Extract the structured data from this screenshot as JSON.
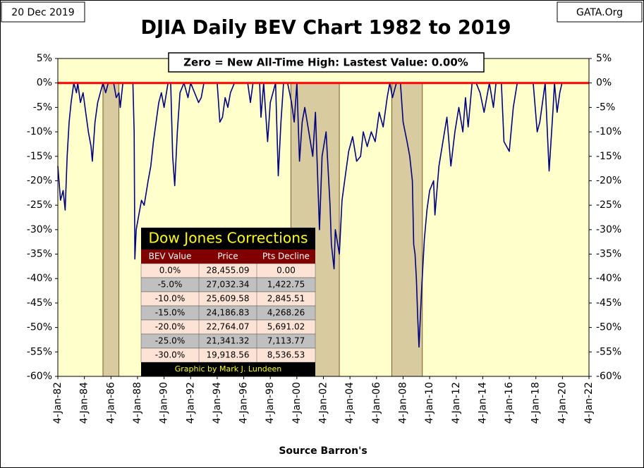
{
  "chart_data": {
    "type": "line",
    "title": "DJIA Daily BEV Chart 1982 to 2019",
    "date_label": "20 Dec 2019",
    "source_mark": "GATA.Org",
    "xlabel": "Source Barron's",
    "annotation": "Zero = New All-Time High: Lastest Value:  0.00%",
    "color": "#000080",
    "hline": {
      "value": 0,
      "color": "#ff0000"
    },
    "shaded_ranges": [
      [
        1985.4,
        1986.6
      ],
      [
        1999.55,
        2003.2
      ],
      [
        2007.15,
        2009.45
      ]
    ],
    "x": [
      1982.0,
      1982.2,
      1982.4,
      1982.55,
      1982.7,
      1982.85,
      1983.0,
      1983.2,
      1983.4,
      1983.5,
      1983.7,
      1983.9,
      1984.1,
      1984.3,
      1984.5,
      1984.6,
      1984.8,
      1985.0,
      1985.2,
      1985.4,
      1985.6,
      1985.8,
      1986.0,
      1986.2,
      1986.4,
      1986.6,
      1986.7,
      1986.9,
      1987.2,
      1987.5,
      1987.65,
      1987.75,
      1987.8,
      1987.9,
      1988.1,
      1988.3,
      1988.5,
      1988.8,
      1989.0,
      1989.2,
      1989.4,
      1989.6,
      1989.8,
      1990.0,
      1990.3,
      1990.5,
      1990.65,
      1990.8,
      1991.0,
      1991.2,
      1991.5,
      1991.8,
      1992.0,
      1992.3,
      1992.6,
      1992.8,
      1993.0,
      1993.5,
      1994.0,
      1994.2,
      1994.4,
      1994.6,
      1994.8,
      1995.0,
      1995.3,
      1995.8,
      1996.3,
      1996.5,
      1996.7,
      1997.2,
      1997.3,
      1997.5,
      1997.8,
      1998.0,
      1998.4,
      1998.6,
      1998.8,
      1999.0,
      1999.3,
      1999.6,
      1999.8,
      2000.0,
      2000.2,
      2000.4,
      2000.6,
      2000.9,
      2001.2,
      2001.4,
      2001.7,
      2001.9,
      2002.2,
      2002.5,
      2002.6,
      2002.8,
      2002.9,
      2003.2,
      2003.4,
      2003.6,
      2003.9,
      2004.2,
      2004.5,
      2004.8,
      2005.0,
      2005.3,
      2005.6,
      2005.9,
      2006.2,
      2006.5,
      2006.8,
      2007.0,
      2007.2,
      2007.5,
      2007.8,
      2008.0,
      2008.3,
      2008.5,
      2008.7,
      2008.8,
      2008.9,
      2009.0,
      2009.1,
      2009.2,
      2009.4,
      2009.6,
      2009.8,
      2010.0,
      2010.3,
      2010.4,
      2010.7,
      2011.0,
      2011.3,
      2011.6,
      2011.9,
      2012.2,
      2012.5,
      2012.7,
      2012.9,
      2013.2,
      2013.5,
      2013.8,
      2014.1,
      2014.5,
      2014.8,
      2015.0,
      2015.4,
      2015.6,
      2016.0,
      2016.3,
      2016.6,
      2016.9,
      2017.3,
      2017.8,
      2018.1,
      2018.3,
      2018.7,
      2018.9,
      2019.0,
      2019.3,
      2019.4,
      2019.6,
      2019.8,
      2019.97
    ],
    "values": [
      -17,
      -24,
      -22,
      -26,
      -15,
      -8,
      -4,
      0,
      -2,
      0,
      -4,
      -2,
      -6,
      -10,
      -13,
      -16,
      -8,
      -4,
      -2,
      0,
      -2,
      0,
      0,
      0,
      -3,
      -2,
      -5,
      0,
      0,
      0,
      0,
      -10,
      -36,
      -30,
      -27,
      -24,
      -25,
      -20,
      -17,
      -12,
      -8,
      -4,
      -2,
      -5,
      0,
      0,
      -15,
      -21,
      -10,
      -2,
      0,
      -3,
      0,
      -2,
      -4,
      -3,
      0,
      0,
      0,
      -8,
      -7,
      -3,
      -5,
      -2,
      0,
      0,
      0,
      -4,
      0,
      0,
      -7,
      0,
      -12,
      -4,
      0,
      -19,
      -8,
      0,
      0,
      -4,
      -8,
      0,
      -16,
      -8,
      -5,
      -10,
      -15,
      -6,
      -30,
      -15,
      -10,
      -25,
      -33,
      -38,
      -30,
      -35,
      -24,
      -20,
      -14,
      -11,
      -16,
      -15,
      -10,
      -13,
      -10,
      -12,
      -6,
      -9,
      -3,
      0,
      -3,
      0,
      0,
      -8,
      -12,
      -15,
      -20,
      -33,
      -35,
      -40,
      -48,
      -54,
      -42,
      -32,
      -26,
      -22,
      -20,
      -27,
      -17,
      -12,
      -7,
      -17,
      -10,
      -5,
      -10,
      -3,
      -9,
      0,
      0,
      -2,
      -6,
      0,
      -5,
      0,
      0,
      -12,
      -14,
      -5,
      0,
      0,
      0,
      0,
      -10,
      -8,
      0,
      -12,
      -18,
      -5,
      0,
      -6,
      -2,
      0
    ],
    "xlim": [
      1982,
      2022
    ],
    "xticks": [
      {
        "value": 1982,
        "label": "4-Jan-82"
      },
      {
        "value": 1984,
        "label": "4-Jan-84"
      },
      {
        "value": 1986,
        "label": "4-Jan-86"
      },
      {
        "value": 1988,
        "label": "4-Jan-88"
      },
      {
        "value": 1990,
        "label": "4-Jan-90"
      },
      {
        "value": 1992,
        "label": "4-Jan-92"
      },
      {
        "value": 1994,
        "label": "4-Jan-94"
      },
      {
        "value": 1996,
        "label": "4-Jan-96"
      },
      {
        "value": 1998,
        "label": "4-Jan-98"
      },
      {
        "value": 2000,
        "label": "4-Jan-00"
      },
      {
        "value": 2002,
        "label": "4-Jan-02"
      },
      {
        "value": 2004,
        "label": "4-Jan-04"
      },
      {
        "value": 2006,
        "label": "4-Jan-06"
      },
      {
        "value": 2008,
        "label": "4-Jan-08"
      },
      {
        "value": 2010,
        "label": "4-Jan-10"
      },
      {
        "value": 2012,
        "label": "4-Jan-12"
      },
      {
        "value": 2014,
        "label": "4-Jan-14"
      },
      {
        "value": 2016,
        "label": "4-Jan-16"
      },
      {
        "value": 2018,
        "label": "4-Jan-18"
      },
      {
        "value": 2020,
        "label": "4-Jan-20"
      },
      {
        "value": 2022,
        "label": "4-Jan-22"
      }
    ],
    "ylim": [
      -60,
      5
    ],
    "yticks": [
      {
        "value": 5,
        "label": "5%"
      },
      {
        "value": 0,
        "label": "0%"
      },
      {
        "value": -5,
        "label": "-5%"
      },
      {
        "value": -10,
        "label": "-10%"
      },
      {
        "value": -15,
        "label": "-15%"
      },
      {
        "value": -20,
        "label": "-20%"
      },
      {
        "value": -25,
        "label": "-25%"
      },
      {
        "value": -30,
        "label": "-30%"
      },
      {
        "value": -35,
        "label": "-35%"
      },
      {
        "value": -40,
        "label": "-40%"
      },
      {
        "value": -45,
        "label": "-45%"
      },
      {
        "value": -50,
        "label": "-50%"
      },
      {
        "value": -55,
        "label": "-55%"
      },
      {
        "value": -60,
        "label": "-60%"
      }
    ],
    "y2lim": [
      -60,
      5
    ],
    "y2ticks": [
      {
        "value": 5,
        "label": "5%"
      },
      {
        "value": 0,
        "label": "0%"
      },
      {
        "value": -5,
        "label": "-5%"
      },
      {
        "value": -10,
        "label": "-10%"
      },
      {
        "value": -15,
        "label": "-15%"
      },
      {
        "value": -20,
        "label": "-20%"
      },
      {
        "value": -25,
        "label": "-25%"
      },
      {
        "value": -30,
        "label": "-30%"
      },
      {
        "value": -35,
        "label": "-35%"
      },
      {
        "value": -40,
        "label": "-40%"
      },
      {
        "value": -45,
        "label": "-45%"
      },
      {
        "value": -50,
        "label": "-50%"
      },
      {
        "value": -55,
        "label": "-55%"
      },
      {
        "value": -60,
        "label": "-60%"
      }
    ],
    "table": {
      "title": "Dow Jones Corrections",
      "header": [
        "BEV Value",
        "Price",
        "Pts Decline"
      ],
      "rows": [
        [
          "0.0%",
          "28,455.09",
          "0.00"
        ],
        [
          "-5.0%",
          "27,032.34",
          "1,422.75"
        ],
        [
          "-10.0%",
          "25,609.58",
          "2,845.51"
        ],
        [
          "-15.0%",
          "24,186.83",
          "4,268.26"
        ],
        [
          "-20.0%",
          "22,764.07",
          "5,691.02"
        ],
        [
          "-25.0%",
          "21,341.32",
          "7,113.77"
        ],
        [
          "-30.0%",
          "19,918.56",
          "8,536.53"
        ]
      ],
      "footer": "Graphic by Mark J. Lundeen"
    }
  }
}
